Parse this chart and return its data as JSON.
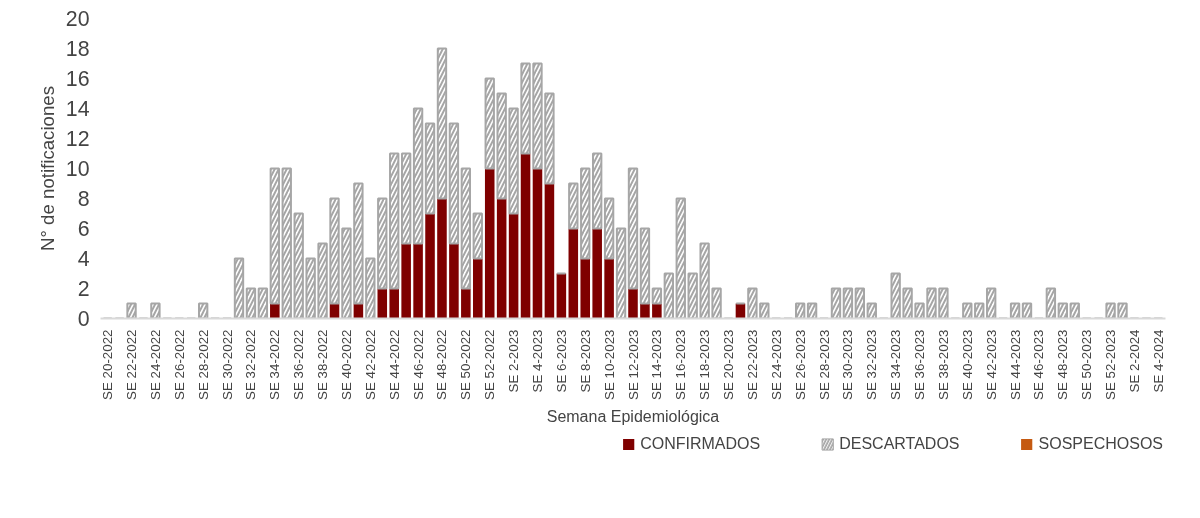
{
  "chart_data": {
    "type": "bar",
    "stacked": true,
    "xlabel": "Semana Epidemiológica",
    "ylabel": "N° de notificaciones",
    "categories": [
      "SE 20-2022",
      null,
      "SE 22-2022",
      null,
      "SE 24-2022",
      null,
      "SE 26-2022",
      null,
      "SE 28-2022",
      null,
      "SE 30-2022",
      null,
      "SE 32-2022",
      null,
      "SE 34-2022",
      null,
      "SE 36-2022",
      null,
      "SE 38-2022",
      null,
      "SE 40-2022",
      null,
      "SE 42-2022",
      null,
      "SE 44-2022",
      null,
      "SE 46-2022",
      null,
      "SE 48-2022",
      null,
      "SE 50-2022",
      null,
      "SE 52-2022",
      null,
      "SE 2-2023",
      null,
      "SE 4-2023",
      null,
      "SE 6-2023",
      null,
      "SE 8-2023",
      null,
      "SE 10-2023",
      null,
      "SE 12-2023",
      null,
      "SE 14-2023",
      null,
      "SE 16-2023",
      null,
      "SE 18-2023",
      null,
      "SE 20-2023",
      null,
      "SE 22-2023",
      null,
      "SE 24-2023",
      null,
      "SE 26-2023",
      null,
      "SE 28-2023",
      null,
      "SE 30-2023",
      null,
      "SE 32-2023",
      null,
      "SE 34-2023",
      null,
      "SE 36-2023",
      null,
      "SE 38-2023",
      null,
      "SE 40-2023",
      null,
      "SE 42-2023",
      null,
      "SE 44-2023",
      null,
      "SE 46-2023",
      null,
      "SE 48-2023",
      null,
      "SE 50-2023",
      null,
      "SE 52-2023",
      null,
      "SE 2-2024",
      null,
      "SE 4-2024"
    ],
    "series": [
      {
        "name": "CONFIRMADOS",
        "color": "#7f0000",
        "values": [
          0,
          0,
          0,
          0,
          0,
          0,
          0,
          0,
          0,
          0,
          0,
          0,
          0,
          0,
          1,
          0,
          0,
          0,
          0,
          1,
          0,
          1,
          0,
          2,
          2,
          5,
          5,
          7,
          8,
          5,
          2,
          4,
          10,
          8,
          7,
          11,
          10,
          9,
          3,
          6,
          4,
          6,
          4,
          0,
          2,
          1,
          1,
          0,
          0,
          0,
          0,
          0,
          0,
          1,
          0,
          0,
          0,
          0,
          0,
          0,
          0,
          0,
          0,
          0,
          0,
          0,
          0,
          0,
          0,
          0,
          0,
          0,
          0,
          0,
          0,
          0,
          0,
          0,
          0,
          0,
          0,
          0,
          0,
          0,
          0,
          0,
          0,
          0,
          0
        ]
      },
      {
        "name": "DESCARTADOS",
        "color": "#a6a6a6",
        "values": [
          0,
          0,
          1,
          0,
          1,
          0,
          0,
          0,
          1,
          0,
          0,
          4,
          2,
          2,
          9,
          10,
          7,
          4,
          5,
          7,
          6,
          8,
          4,
          6,
          9,
          6,
          9,
          6,
          10,
          8,
          8,
          3,
          6,
          7,
          7,
          6,
          7,
          6,
          0,
          3,
          6,
          5,
          4,
          6,
          8,
          5,
          1,
          3,
          8,
          3,
          5,
          2,
          0,
          0,
          2,
          1,
          0,
          0,
          1,
          1,
          0,
          2,
          2,
          2,
          1,
          0,
          3,
          2,
          1,
          2,
          2,
          0,
          1,
          1,
          2,
          0,
          1,
          1,
          0,
          2,
          1,
          1,
          0,
          0,
          1,
          1,
          0,
          0,
          0
        ]
      },
      {
        "name": "SOSPECHOSOS",
        "color": "#c55a11",
        "values": [
          0,
          0,
          0,
          0,
          0,
          0,
          0,
          0,
          0,
          0,
          0,
          0,
          0,
          0,
          0,
          0,
          0,
          0,
          0,
          0,
          0,
          0,
          0,
          0,
          0,
          0,
          0,
          0,
          0,
          0,
          0,
          0,
          0,
          0,
          0,
          0,
          0,
          0,
          0,
          0,
          0,
          0,
          0,
          0,
          0,
          0,
          0,
          0,
          0,
          0,
          0,
          0,
          0,
          0,
          0,
          0,
          0,
          0,
          0,
          0,
          0,
          0,
          0,
          0,
          0,
          0,
          0,
          0,
          0,
          0,
          0,
          0,
          0,
          0,
          0,
          0,
          0,
          0,
          0,
          0,
          0,
          0,
          0,
          0,
          0,
          0,
          0,
          0,
          0
        ]
      }
    ],
    "ylim": [
      0,
      20
    ],
    "yticks": [
      0,
      2,
      4,
      6,
      8,
      10,
      12,
      14,
      16,
      18,
      20
    ],
    "grid": false,
    "legend": "bottom right"
  }
}
